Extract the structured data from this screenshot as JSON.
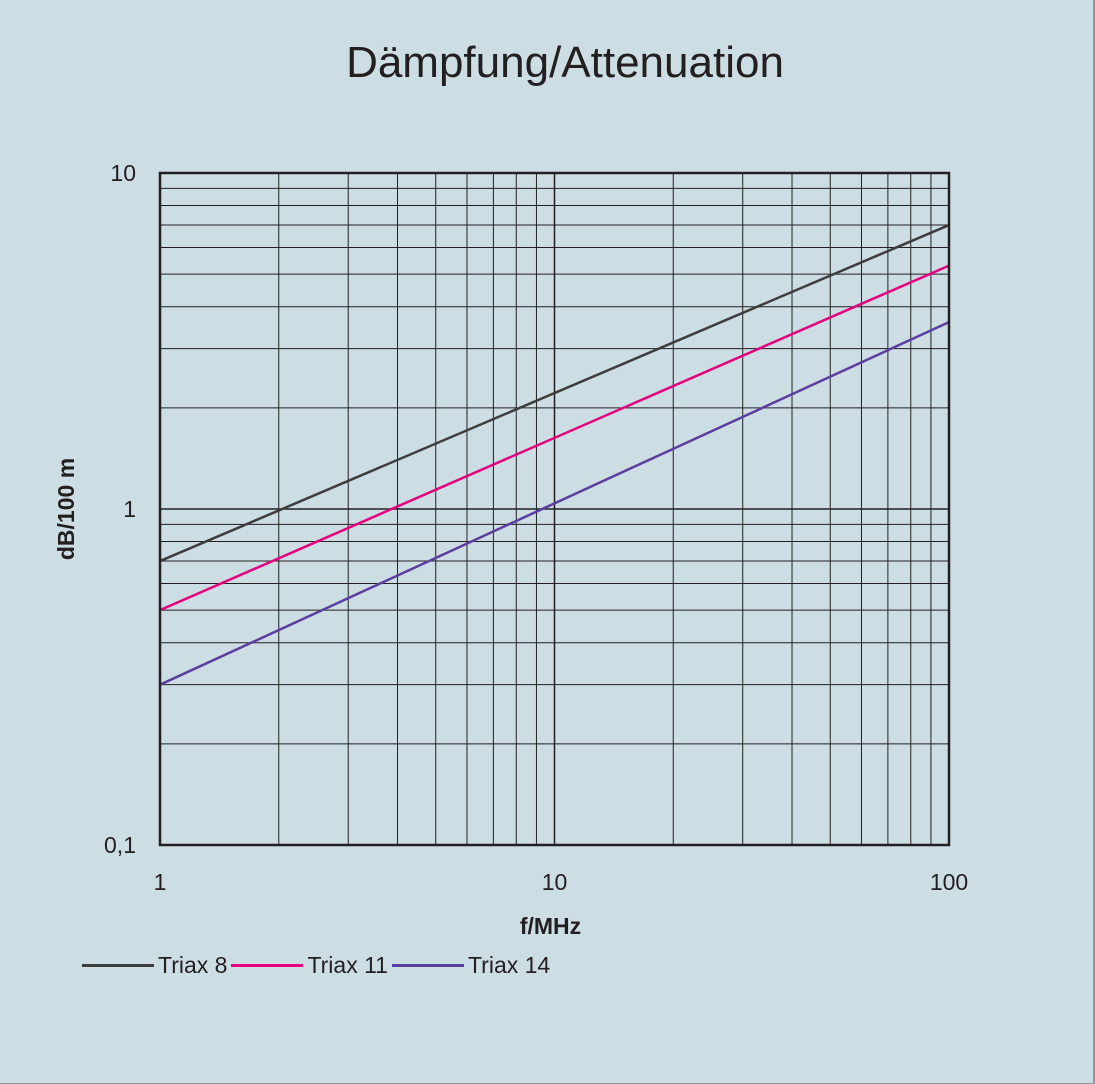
{
  "chart_data": {
    "type": "line",
    "title": "Dämpfung/Attenuation",
    "xlabel": "f/MHz",
    "ylabel": "dB/100 m",
    "x_scale": "log",
    "y_scale": "log",
    "xlim": [
      1,
      100
    ],
    "ylim": [
      0.1,
      10
    ],
    "grid": true,
    "legend_position": "bottom-left",
    "x_ticks": [
      {
        "value": 1,
        "label": "1"
      },
      {
        "value": 10,
        "label": "10"
      },
      {
        "value": 100,
        "label": "100"
      }
    ],
    "y_ticks": [
      {
        "value": 0.1,
        "label": "0,1"
      },
      {
        "value": 1,
        "label": "1"
      },
      {
        "value": 10,
        "label": "10"
      }
    ],
    "series": [
      {
        "name": "Triax 8",
        "color": "#3d3d3d",
        "x": [
          1,
          100
        ],
        "values": [
          0.7,
          7.0
        ]
      },
      {
        "name": "Triax 11",
        "color": "#e6007e",
        "x": [
          1,
          100
        ],
        "values": [
          0.5,
          5.3
        ]
      },
      {
        "name": "Triax 14",
        "color": "#5b3fa0",
        "x": [
          1,
          100
        ],
        "values": [
          0.3,
          3.6
        ]
      }
    ]
  }
}
